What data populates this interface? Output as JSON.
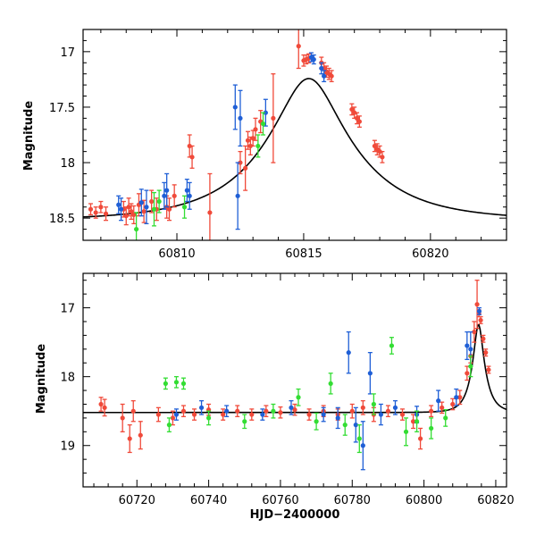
{
  "colors": {
    "blue": "#1f5fd6",
    "green": "#33dd33",
    "red": "#f04a3a",
    "model": "#000000"
  },
  "chart_data": [
    {
      "id": "top",
      "type": "scatter",
      "title": "",
      "xlabel": "",
      "ylabel": "Magnitude",
      "xlim": [
        60806.3,
        60823
      ],
      "ylim": [
        18.7,
        16.8
      ],
      "y_inverted": true,
      "grid": false,
      "xticks": [
        60810,
        60815,
        60820
      ],
      "xtick_labels": [
        "60810",
        "60815",
        "60820"
      ],
      "yticks": [
        17,
        17.5,
        18,
        18.5
      ],
      "ytick_labels": [
        "17",
        "17.5",
        "18",
        "18.5"
      ],
      "model_curve": {
        "baseline_mag": 18.52,
        "peak_time": 60815.2,
        "u0": 0.32,
        "tE": 3.5
      },
      "series": [
        {
          "color_key": "red",
          "points": [
            {
              "x": 60806.6,
              "y": 18.42,
              "err": 0.05
            },
            {
              "x": 60806.8,
              "y": 18.45,
              "err": 0.05
            },
            {
              "x": 60807.0,
              "y": 18.4,
              "err": 0.05
            },
            {
              "x": 60807.2,
              "y": 18.46,
              "err": 0.06
            },
            {
              "x": 60807.9,
              "y": 18.42,
              "err": 0.07
            },
            {
              "x": 60808.0,
              "y": 18.48,
              "err": 0.08
            },
            {
              "x": 60808.1,
              "y": 18.4,
              "err": 0.08
            },
            {
              "x": 60808.2,
              "y": 18.44,
              "err": 0.07
            },
            {
              "x": 60808.3,
              "y": 18.47,
              "err": 0.08
            },
            {
              "x": 60808.5,
              "y": 18.38,
              "err": 0.1
            },
            {
              "x": 60808.7,
              "y": 18.44,
              "err": 0.1
            },
            {
              "x": 60809.0,
              "y": 18.35,
              "err": 0.1
            },
            {
              "x": 60809.2,
              "y": 18.42,
              "err": 0.1
            },
            {
              "x": 60809.6,
              "y": 18.4,
              "err": 0.1
            },
            {
              "x": 60809.7,
              "y": 18.42,
              "err": 0.1
            },
            {
              "x": 60809.9,
              "y": 18.3,
              "err": 0.1
            },
            {
              "x": 60810.5,
              "y": 17.85,
              "err": 0.1
            },
            {
              "x": 60810.6,
              "y": 17.95,
              "err": 0.1
            },
            {
              "x": 60811.3,
              "y": 18.45,
              "err": 0.35
            },
            {
              "x": 60812.5,
              "y": 18.0,
              "err": 0.1
            },
            {
              "x": 60812.7,
              "y": 18.05,
              "err": 0.2
            },
            {
              "x": 60812.8,
              "y": 17.8,
              "err": 0.08
            },
            {
              "x": 60812.9,
              "y": 17.85,
              "err": 0.08
            },
            {
              "x": 60813.0,
              "y": 17.78,
              "err": 0.07
            },
            {
              "x": 60813.1,
              "y": 17.7,
              "err": 0.1
            },
            {
              "x": 60813.3,
              "y": 17.63,
              "err": 0.1
            },
            {
              "x": 60813.8,
              "y": 17.6,
              "err": 0.4
            },
            {
              "x": 60814.8,
              "y": 16.95,
              "err": 0.2
            },
            {
              "x": 60815.0,
              "y": 17.08,
              "err": 0.05
            },
            {
              "x": 60815.1,
              "y": 17.07,
              "err": 0.04
            },
            {
              "x": 60815.2,
              "y": 17.06,
              "err": 0.04
            },
            {
              "x": 60815.7,
              "y": 17.1,
              "err": 0.05
            },
            {
              "x": 60815.8,
              "y": 17.15,
              "err": 0.05
            },
            {
              "x": 60815.9,
              "y": 17.18,
              "err": 0.05
            },
            {
              "x": 60816.0,
              "y": 17.2,
              "err": 0.05
            },
            {
              "x": 60816.1,
              "y": 17.22,
              "err": 0.05
            },
            {
              "x": 60816.9,
              "y": 17.52,
              "err": 0.05
            },
            {
              "x": 60817.0,
              "y": 17.55,
              "err": 0.05
            },
            {
              "x": 60817.1,
              "y": 17.6,
              "err": 0.05
            },
            {
              "x": 60817.2,
              "y": 17.63,
              "err": 0.05
            },
            {
              "x": 60817.8,
              "y": 17.85,
              "err": 0.05
            },
            {
              "x": 60817.9,
              "y": 17.88,
              "err": 0.05
            },
            {
              "x": 60818.0,
              "y": 17.9,
              "err": 0.05
            },
            {
              "x": 60818.1,
              "y": 17.95,
              "err": 0.05
            }
          ]
        },
        {
          "color_key": "blue",
          "points": [
            {
              "x": 60807.7,
              "y": 18.38,
              "err": 0.08
            },
            {
              "x": 60807.8,
              "y": 18.42,
              "err": 0.1
            },
            {
              "x": 60808.6,
              "y": 18.36,
              "err": 0.12
            },
            {
              "x": 60808.8,
              "y": 18.4,
              "err": 0.15
            },
            {
              "x": 60809.5,
              "y": 18.3,
              "err": 0.12
            },
            {
              "x": 60809.6,
              "y": 18.25,
              "err": 0.15
            },
            {
              "x": 60810.4,
              "y": 18.25,
              "err": 0.1
            },
            {
              "x": 60810.5,
              "y": 18.3,
              "err": 0.12
            },
            {
              "x": 60812.3,
              "y": 17.5,
              "err": 0.2
            },
            {
              "x": 60812.4,
              "y": 18.3,
              "err": 0.3
            },
            {
              "x": 60812.5,
              "y": 17.6,
              "err": 0.25
            },
            {
              "x": 60813.5,
              "y": 17.55,
              "err": 0.12
            },
            {
              "x": 60815.3,
              "y": 17.05,
              "err": 0.04
            },
            {
              "x": 60815.4,
              "y": 17.07,
              "err": 0.04
            },
            {
              "x": 60815.7,
              "y": 17.15,
              "err": 0.05
            },
            {
              "x": 60815.8,
              "y": 17.22,
              "err": 0.05
            }
          ]
        },
        {
          "color_key": "green",
          "points": [
            {
              "x": 60808.4,
              "y": 18.6,
              "err": 0.15
            },
            {
              "x": 60809.1,
              "y": 18.42,
              "err": 0.15
            },
            {
              "x": 60809.3,
              "y": 18.35,
              "err": 0.1
            },
            {
              "x": 60810.3,
              "y": 18.4,
              "err": 0.1
            },
            {
              "x": 60813.2,
              "y": 17.85,
              "err": 0.1
            },
            {
              "x": 60813.4,
              "y": 17.65,
              "err": 0.1
            }
          ]
        }
      ]
    },
    {
      "id": "bottom",
      "type": "scatter",
      "title": "",
      "xlabel": "HJD−2400000",
      "ylabel": "Magnitude",
      "xlim": [
        60705,
        60823
      ],
      "ylim": [
        19.6,
        16.5
      ],
      "y_inverted": true,
      "grid": false,
      "xticks": [
        60720,
        60740,
        60760,
        60780,
        60800,
        60820
      ],
      "xtick_labels": [
        "60720",
        "60740",
        "60760",
        "60780",
        "60800",
        "60820"
      ],
      "yticks": [
        17,
        18,
        19
      ],
      "ytick_labels": [
        "17",
        "18",
        "19"
      ],
      "model_curve": {
        "baseline_mag": 18.52,
        "peak_time": 60815.2,
        "u0": 0.32,
        "tE": 3.5
      },
      "series": [
        {
          "color_key": "red",
          "points": [
            {
              "x": 60710,
              "y": 18.4,
              "err": 0.1
            },
            {
              "x": 60711,
              "y": 18.45,
              "err": 0.12
            },
            {
              "x": 60716,
              "y": 18.6,
              "err": 0.2
            },
            {
              "x": 60718,
              "y": 18.9,
              "err": 0.2
            },
            {
              "x": 60719,
              "y": 18.5,
              "err": 0.15
            },
            {
              "x": 60721,
              "y": 18.85,
              "err": 0.2
            },
            {
              "x": 60726,
              "y": 18.55,
              "err": 0.1
            },
            {
              "x": 60730,
              "y": 18.6,
              "err": 0.1
            },
            {
              "x": 60733,
              "y": 18.5,
              "err": 0.08
            },
            {
              "x": 60736,
              "y": 18.55,
              "err": 0.08
            },
            {
              "x": 60740,
              "y": 18.48,
              "err": 0.08
            },
            {
              "x": 60744,
              "y": 18.55,
              "err": 0.08
            },
            {
              "x": 60748,
              "y": 18.5,
              "err": 0.08
            },
            {
              "x": 60752,
              "y": 18.55,
              "err": 0.08
            },
            {
              "x": 60756,
              "y": 18.5,
              "err": 0.08
            },
            {
              "x": 60760,
              "y": 18.52,
              "err": 0.08
            },
            {
              "x": 60764,
              "y": 18.48,
              "err": 0.08
            },
            {
              "x": 60768,
              "y": 18.55,
              "err": 0.08
            },
            {
              "x": 60772,
              "y": 18.5,
              "err": 0.08
            },
            {
              "x": 60776,
              "y": 18.55,
              "err": 0.08
            },
            {
              "x": 60780,
              "y": 18.5,
              "err": 0.1
            },
            {
              "x": 60783,
              "y": 18.45,
              "err": 0.1
            },
            {
              "x": 60786,
              "y": 18.55,
              "err": 0.1
            },
            {
              "x": 60790,
              "y": 18.5,
              "err": 0.08
            },
            {
              "x": 60794,
              "y": 18.55,
              "err": 0.08
            },
            {
              "x": 60797,
              "y": 18.65,
              "err": 0.1
            },
            {
              "x": 60799,
              "y": 18.9,
              "err": 0.15
            },
            {
              "x": 60802,
              "y": 18.5,
              "err": 0.08
            },
            {
              "x": 60805,
              "y": 18.45,
              "err": 0.08
            },
            {
              "x": 60808,
              "y": 18.4,
              "err": 0.08
            },
            {
              "x": 60810,
              "y": 18.3,
              "err": 0.1
            },
            {
              "x": 60812,
              "y": 17.95,
              "err": 0.1
            },
            {
              "x": 60813,
              "y": 17.7,
              "err": 0.1
            },
            {
              "x": 60814,
              "y": 17.35,
              "err": 0.15
            },
            {
              "x": 60814.8,
              "y": 16.95,
              "err": 0.35
            },
            {
              "x": 60815.3,
              "y": 17.08,
              "err": 0.05
            },
            {
              "x": 60815.8,
              "y": 17.18,
              "err": 0.05
            },
            {
              "x": 60816.5,
              "y": 17.45,
              "err": 0.05
            },
            {
              "x": 60817.2,
              "y": 17.65,
              "err": 0.05
            },
            {
              "x": 60818,
              "y": 17.9,
              "err": 0.05
            }
          ]
        },
        {
          "color_key": "blue",
          "points": [
            {
              "x": 60731,
              "y": 18.55,
              "err": 0.08
            },
            {
              "x": 60738,
              "y": 18.45,
              "err": 0.1
            },
            {
              "x": 60745,
              "y": 18.5,
              "err": 0.08
            },
            {
              "x": 60755,
              "y": 18.55,
              "err": 0.08
            },
            {
              "x": 60763,
              "y": 18.45,
              "err": 0.1
            },
            {
              "x": 60772,
              "y": 18.55,
              "err": 0.1
            },
            {
              "x": 60776,
              "y": 18.6,
              "err": 0.15
            },
            {
              "x": 60779,
              "y": 17.65,
              "err": 0.3
            },
            {
              "x": 60781,
              "y": 18.7,
              "err": 0.25
            },
            {
              "x": 60783,
              "y": 19.0,
              "err": 0.35
            },
            {
              "x": 60785,
              "y": 17.95,
              "err": 0.3
            },
            {
              "x": 60788,
              "y": 18.55,
              "err": 0.15
            },
            {
              "x": 60792,
              "y": 18.45,
              "err": 0.1
            },
            {
              "x": 60798,
              "y": 18.55,
              "err": 0.12
            },
            {
              "x": 60804,
              "y": 18.35,
              "err": 0.15
            },
            {
              "x": 60809,
              "y": 18.3,
              "err": 0.12
            },
            {
              "x": 60812,
              "y": 17.55,
              "err": 0.2
            },
            {
              "x": 60813,
              "y": 17.6,
              "err": 0.25
            },
            {
              "x": 60815.4,
              "y": 17.05,
              "err": 0.05
            }
          ]
        },
        {
          "color_key": "green",
          "points": [
            {
              "x": 60728,
              "y": 18.1,
              "err": 0.08
            },
            {
              "x": 60731,
              "y": 18.08,
              "err": 0.08
            },
            {
              "x": 60733,
              "y": 18.1,
              "err": 0.08
            },
            {
              "x": 60729,
              "y": 18.7,
              "err": 0.1
            },
            {
              "x": 60740,
              "y": 18.6,
              "err": 0.1
            },
            {
              "x": 60750,
              "y": 18.65,
              "err": 0.1
            },
            {
              "x": 60758,
              "y": 18.5,
              "err": 0.1
            },
            {
              "x": 60765,
              "y": 18.3,
              "err": 0.12
            },
            {
              "x": 60770,
              "y": 18.65,
              "err": 0.12
            },
            {
              "x": 60774,
              "y": 18.1,
              "err": 0.15
            },
            {
              "x": 60778,
              "y": 18.7,
              "err": 0.15
            },
            {
              "x": 60782,
              "y": 18.9,
              "err": 0.2
            },
            {
              "x": 60786,
              "y": 18.4,
              "err": 0.15
            },
            {
              "x": 60791,
              "y": 17.55,
              "err": 0.12
            },
            {
              "x": 60795,
              "y": 18.8,
              "err": 0.2
            },
            {
              "x": 60798,
              "y": 18.65,
              "err": 0.15
            },
            {
              "x": 60802,
              "y": 18.75,
              "err": 0.15
            },
            {
              "x": 60806,
              "y": 18.6,
              "err": 0.12
            },
            {
              "x": 60813,
              "y": 17.85,
              "err": 0.15
            }
          ]
        }
      ]
    }
  ]
}
